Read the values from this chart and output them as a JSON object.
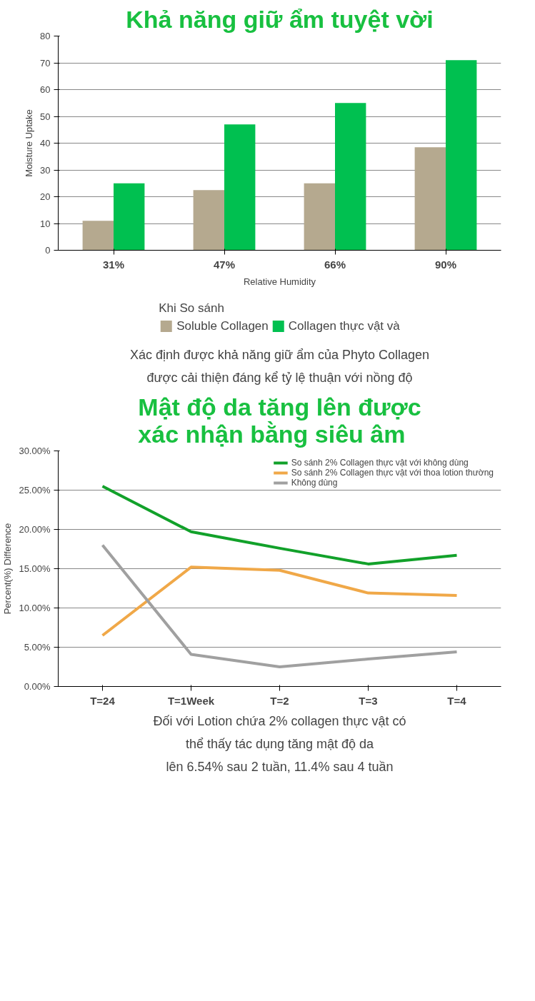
{
  "chart_data": [
    {
      "type": "bar",
      "title": "Khả năng giữ ẩm tuyệt vời",
      "xlabel": "Relative Humidity",
      "ylabel": "Moisture Uptake",
      "categories": [
        "31%",
        "47%",
        "66%",
        "90%"
      ],
      "series": [
        {
          "name": "Soluble Collagen",
          "color": "#b5a98f",
          "values": [
            11,
            22.5,
            25,
            38.5
          ]
        },
        {
          "name": "Collagen thực vật và",
          "color": "#00c050",
          "values": [
            25,
            47,
            55,
            71
          ]
        }
      ],
      "ylim": [
        0,
        80
      ],
      "yticks": [
        0,
        10,
        20,
        30,
        40,
        50,
        60,
        70,
        80
      ],
      "grid": "y",
      "legend": "bottom",
      "legend_title": "Khi So sánh",
      "annotations": [
        "Xác định được khả năng giữ ẩm của Phyto Collagen",
        "được cải thiện đáng kể tỷ lệ thuận với nồng độ"
      ]
    },
    {
      "type": "line",
      "title": "Mật độ da tăng lên được\nxác nhận bằng siêu âm",
      "ylabel": "Percent(%) Difference",
      "categories": [
        "T=24",
        "T=1Week",
        "T=2",
        "T=3",
        "T=4"
      ],
      "series": [
        {
          "name": "So sánh 2% Collagen thực vật với không dùng",
          "color": "#12a12a",
          "values": [
            25.5,
            19.7,
            17.6,
            15.6,
            16.7
          ]
        },
        {
          "name": "So sánh 2% Collagen thực vật với thoa lotion thường",
          "color": "#f0a848",
          "values": [
            6.5,
            15.2,
            14.8,
            11.9,
            11.6
          ]
        },
        {
          "name": "Không dùng",
          "color": "#a0a0a0",
          "values": [
            18,
            4.1,
            2.5,
            3.5,
            4.4
          ]
        }
      ],
      "ylim": [
        0,
        30
      ],
      "yticks": [
        {
          "value": 0,
          "label": "0.00%"
        },
        {
          "value": 5,
          "label": "5.00%"
        },
        {
          "value": 10,
          "label": "10.00%"
        },
        {
          "value": 15,
          "label": "15.00%"
        },
        {
          "value": 20,
          "label": "20.00%"
        },
        {
          "value": 25,
          "label": "25.00%"
        },
        {
          "value": 30,
          "label": "30.00%"
        }
      ],
      "grid": "y",
      "legend": "top right",
      "marker": "none",
      "line_style": "solid",
      "annotations": [
        "Đối với Lotion chứa 2% collagen thực vật có",
        "thể thấy tác dụng tăng mật độ da",
        "lên 6.54% sau 2 tuần, 11.4% sau 4 tuần"
      ]
    }
  ]
}
